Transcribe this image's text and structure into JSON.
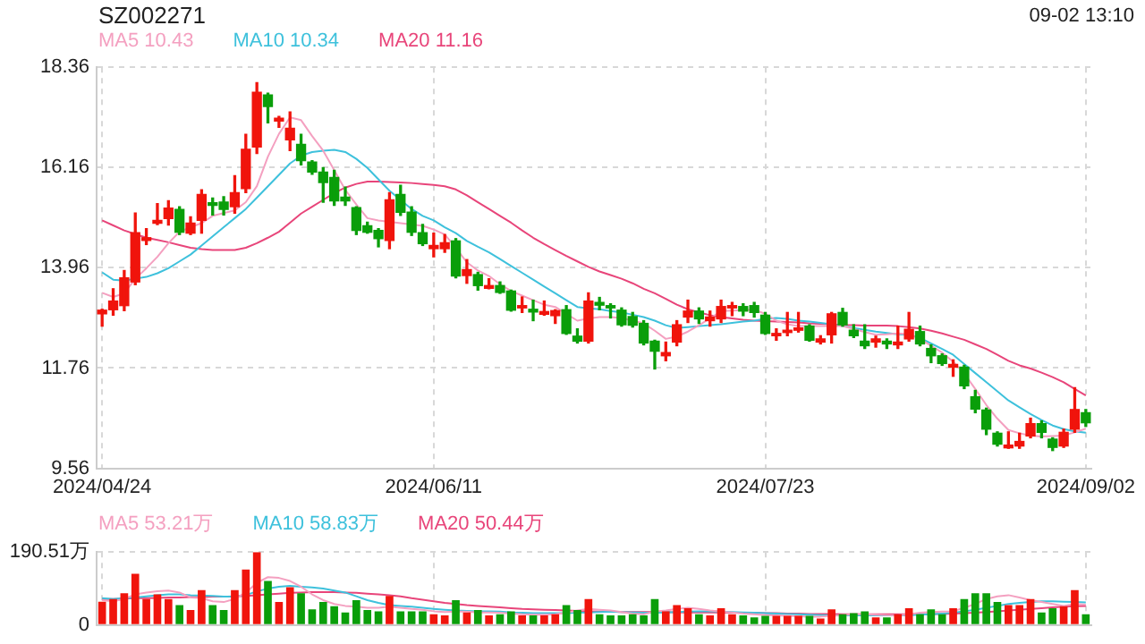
{
  "chart_data": [
    {
      "type": "candlestick",
      "title": "SZ002271",
      "annotations": [
        "09-02 13:10"
      ],
      "categories": [
        "2024/04/24",
        null,
        null,
        null,
        null,
        null,
        null,
        null,
        null,
        null,
        null,
        null,
        null,
        null,
        null,
        null,
        null,
        null,
        null,
        null,
        null,
        null,
        null,
        null,
        null,
        null,
        null,
        null,
        null,
        null,
        "2024/06/11",
        null,
        null,
        null,
        null,
        null,
        null,
        null,
        null,
        null,
        null,
        null,
        null,
        null,
        null,
        null,
        null,
        null,
        null,
        null,
        null,
        null,
        null,
        null,
        null,
        null,
        null,
        null,
        null,
        null,
        "2024/07/23",
        null,
        null,
        null,
        null,
        null,
        null,
        null,
        null,
        null,
        null,
        null,
        null,
        null,
        null,
        null,
        null,
        null,
        null,
        null,
        null,
        null,
        null,
        null,
        null,
        null,
        null,
        null,
        null,
        "2024/09/02"
      ],
      "ohlc": [
        [
          12.95,
          13.05,
          12.68,
          13.03
        ],
        [
          13.04,
          13.5,
          12.92,
          13.23
        ],
        [
          13.13,
          13.9,
          13.02,
          13.74
        ],
        [
          13.65,
          15.16,
          13.59,
          14.73
        ],
        [
          14.56,
          14.82,
          14.47,
          14.62
        ],
        [
          14.94,
          15.37,
          14.91,
          15.0
        ],
        [
          15.04,
          15.43,
          14.9,
          15.27
        ],
        [
          15.24,
          15.3,
          14.69,
          14.74
        ],
        [
          14.72,
          15.08,
          14.69,
          14.94
        ],
        [
          15.0,
          15.67,
          14.72,
          15.57
        ],
        [
          15.39,
          15.49,
          15.12,
          15.33
        ],
        [
          15.4,
          15.52,
          15.12,
          15.24
        ],
        [
          15.3,
          15.98,
          15.16,
          15.61
        ],
        [
          15.7,
          16.89,
          15.61,
          16.56
        ],
        [
          16.61,
          18.02,
          16.47,
          17.81
        ],
        [
          17.75,
          17.79,
          17.14,
          17.5
        ],
        [
          17.18,
          17.28,
          17.04,
          17.24
        ],
        [
          16.77,
          17.38,
          16.53,
          17.02
        ],
        [
          16.67,
          16.89,
          16.22,
          16.31
        ],
        [
          16.28,
          16.31,
          16.01,
          16.06
        ],
        [
          16.06,
          16.16,
          15.4,
          15.83
        ],
        [
          15.94,
          16.1,
          15.33,
          15.43
        ],
        [
          15.51,
          15.73,
          15.33,
          15.43
        ],
        [
          15.28,
          15.3,
          14.69,
          14.78
        ],
        [
          14.88,
          14.96,
          14.72,
          14.74
        ],
        [
          14.78,
          14.82,
          14.42,
          14.6
        ],
        [
          14.56,
          15.61,
          14.38,
          15.45
        ],
        [
          15.57,
          15.77,
          15.11,
          15.18
        ],
        [
          15.18,
          15.3,
          14.67,
          14.74
        ],
        [
          14.73,
          14.91,
          14.45,
          14.49
        ],
        [
          14.38,
          14.72,
          14.2,
          14.45
        ],
        [
          14.38,
          14.69,
          14.3,
          14.51
        ],
        [
          14.55,
          14.6,
          13.74,
          13.78
        ],
        [
          13.79,
          14.14,
          13.62,
          13.92
        ],
        [
          13.81,
          13.86,
          13.47,
          13.57
        ],
        [
          13.51,
          13.72,
          13.5,
          13.57
        ],
        [
          13.57,
          13.65,
          13.4,
          13.42
        ],
        [
          13.45,
          13.47,
          13.01,
          13.03
        ],
        [
          13.08,
          13.32,
          12.98,
          13.13
        ],
        [
          13.05,
          13.25,
          12.8,
          12.99
        ],
        [
          12.94,
          13.23,
          12.92,
          13.0
        ],
        [
          12.91,
          13.04,
          12.74,
          13.02
        ],
        [
          13.04,
          13.13,
          12.5,
          12.52
        ],
        [
          12.46,
          12.62,
          12.31,
          12.35
        ],
        [
          12.35,
          13.41,
          12.31,
          13.23
        ],
        [
          13.2,
          13.31,
          13.04,
          13.14
        ],
        [
          13.13,
          13.17,
          12.86,
          13.08
        ],
        [
          13.03,
          13.08,
          12.68,
          12.71
        ],
        [
          12.89,
          12.98,
          12.66,
          12.7
        ],
        [
          12.74,
          12.8,
          12.27,
          12.31
        ],
        [
          12.35,
          12.37,
          11.74,
          12.13
        ],
        [
          12.03,
          12.33,
          11.92,
          12.1
        ],
        [
          12.33,
          12.8,
          12.25,
          12.71
        ],
        [
          12.88,
          13.25,
          12.76,
          13.01
        ],
        [
          13.01,
          13.08,
          12.74,
          12.84
        ],
        [
          12.8,
          13.01,
          12.68,
          12.88
        ],
        [
          12.84,
          13.25,
          12.76,
          13.11
        ],
        [
          13.08,
          13.2,
          12.91,
          13.13
        ],
        [
          13.11,
          13.17,
          12.91,
          13.01
        ],
        [
          13.13,
          13.2,
          12.88,
          12.98
        ],
        [
          12.92,
          12.98,
          12.5,
          12.52
        ],
        [
          12.47,
          12.62,
          12.37,
          12.52
        ],
        [
          12.54,
          12.98,
          12.47,
          12.59
        ],
        [
          12.59,
          12.98,
          12.55,
          12.64
        ],
        [
          12.68,
          12.71,
          12.35,
          12.37
        ],
        [
          12.33,
          12.47,
          12.29,
          12.4
        ],
        [
          12.49,
          12.98,
          12.31,
          12.95
        ],
        [
          12.98,
          13.07,
          12.68,
          12.71
        ],
        [
          12.59,
          12.71,
          12.43,
          12.47
        ],
        [
          12.35,
          12.71,
          12.19,
          12.25
        ],
        [
          12.33,
          12.46,
          12.22,
          12.4
        ],
        [
          12.35,
          12.4,
          12.19,
          12.29
        ],
        [
          12.27,
          12.68,
          12.19,
          12.33
        ],
        [
          12.4,
          12.98,
          12.35,
          12.61
        ],
        [
          12.56,
          12.68,
          12.25,
          12.29
        ],
        [
          12.19,
          12.27,
          11.88,
          12.03
        ],
        [
          12.03,
          12.07,
          11.82,
          11.86
        ],
        [
          11.78,
          11.94,
          11.58,
          11.84
        ],
        [
          11.78,
          11.82,
          11.31,
          11.37
        ],
        [
          11.13,
          11.27,
          10.78,
          10.86
        ],
        [
          10.84,
          10.88,
          10.3,
          10.42
        ],
        [
          10.33,
          10.36,
          10.05,
          10.09
        ],
        [
          10.01,
          10.36,
          10.0,
          10.07
        ],
        [
          10.05,
          10.33,
          10.0,
          10.15
        ],
        [
          10.27,
          10.66,
          10.23,
          10.54
        ],
        [
          10.54,
          10.6,
          10.23,
          10.35
        ],
        [
          10.2,
          10.23,
          9.95,
          10.02
        ],
        [
          10.05,
          10.42,
          10.02,
          10.35
        ],
        [
          10.42,
          11.33,
          10.35,
          10.85
        ],
        [
          10.78,
          10.85,
          10.48,
          10.56
        ]
      ],
      "series": [
        {
          "type": "line",
          "name": "MA5 10.43",
          "color": "#f4a0c0",
          "values": [
            13.41,
            13.32,
            13.4,
            13.72,
            13.95,
            14.2,
            14.5,
            14.75,
            14.85,
            14.94,
            15.1,
            15.16,
            15.22,
            15.4,
            15.75,
            16.4,
            16.9,
            17.26,
            17.2,
            16.85,
            16.53,
            16.1,
            15.67,
            15.35,
            15.05,
            15.0,
            14.97,
            14.94,
            14.91,
            14.88,
            14.8,
            14.69,
            14.4,
            14.08,
            13.9,
            13.78,
            13.6,
            13.45,
            13.35,
            13.25,
            13.15,
            13.1,
            12.95,
            12.8,
            12.85,
            12.88,
            12.88,
            12.86,
            12.8,
            12.74,
            12.58,
            12.4,
            12.45,
            12.56,
            12.7,
            12.85,
            13.01,
            13.02,
            13.03,
            13.04,
            12.95,
            12.8,
            12.72,
            12.68,
            12.68,
            12.68,
            12.68,
            12.68,
            12.62,
            12.55,
            12.49,
            12.5,
            12.52,
            12.5,
            12.4,
            12.25,
            12.1,
            11.9,
            11.64,
            11.3,
            10.95,
            10.65,
            10.4,
            10.33,
            10.28,
            10.26,
            10.27,
            10.28,
            10.35,
            10.43
          ]
        },
        {
          "type": "line",
          "name": "MA10 10.34",
          "color": "#3ec1dc",
          "values": [
            13.86,
            13.7,
            13.68,
            13.72,
            13.76,
            13.84,
            13.95,
            14.1,
            14.25,
            14.45,
            14.65,
            14.85,
            15.05,
            15.25,
            15.5,
            15.75,
            16.0,
            16.25,
            16.42,
            16.5,
            16.53,
            16.55,
            16.5,
            16.35,
            16.15,
            15.9,
            15.65,
            15.45,
            15.25,
            15.1,
            15.0,
            14.85,
            14.72,
            14.55,
            14.42,
            14.3,
            14.15,
            14.0,
            13.85,
            13.7,
            13.55,
            13.4,
            13.25,
            13.1,
            13.07,
            13.05,
            13.01,
            12.98,
            12.93,
            12.88,
            12.8,
            12.7,
            12.64,
            12.66,
            12.68,
            12.7,
            12.72,
            12.75,
            12.78,
            12.8,
            12.84,
            12.86,
            12.84,
            12.8,
            12.78,
            12.75,
            12.72,
            12.68,
            12.64,
            12.6,
            12.56,
            12.53,
            12.5,
            12.49,
            12.42,
            12.3,
            12.18,
            12.05,
            11.85,
            11.65,
            11.45,
            11.25,
            11.05,
            10.9,
            10.75,
            10.62,
            10.5,
            10.42,
            10.37,
            10.34
          ]
        },
        {
          "type": "line",
          "name": "MA20 11.16",
          "color": "#e8457a",
          "values": [
            15.0,
            14.89,
            14.78,
            14.7,
            14.62,
            14.57,
            14.52,
            14.46,
            14.4,
            14.37,
            14.35,
            14.35,
            14.35,
            14.4,
            14.5,
            14.62,
            14.75,
            14.95,
            15.15,
            15.3,
            15.45,
            15.6,
            15.72,
            15.8,
            15.85,
            15.85,
            15.84,
            15.83,
            15.82,
            15.8,
            15.78,
            15.75,
            15.68,
            15.55,
            15.4,
            15.25,
            15.1,
            14.95,
            14.78,
            14.62,
            14.48,
            14.35,
            14.22,
            14.1,
            13.98,
            13.88,
            13.8,
            13.72,
            13.62,
            13.5,
            13.4,
            13.28,
            13.15,
            13.05,
            12.98,
            12.92,
            12.88,
            12.85,
            12.82,
            12.8,
            12.79,
            12.78,
            12.77,
            12.76,
            12.74,
            12.73,
            12.72,
            12.7,
            12.7,
            12.69,
            12.69,
            12.69,
            12.68,
            12.66,
            12.63,
            12.58,
            12.52,
            12.45,
            12.38,
            12.28,
            12.18,
            12.05,
            11.92,
            11.82,
            11.75,
            11.66,
            11.56,
            11.45,
            11.3,
            11.16
          ]
        }
      ],
      "ylim": [
        9.56,
        18.36
      ],
      "yticks": [
        9.56,
        11.76,
        13.96,
        16.16,
        18.36
      ],
      "grid": true,
      "legend": "top left"
    },
    {
      "type": "bar",
      "tick_labels": "y",
      "categories": [
        "2024/04/24",
        null,
        null,
        null,
        null,
        null,
        null,
        null,
        null,
        null,
        null,
        null,
        null,
        null,
        null,
        null,
        null,
        null,
        null,
        null,
        null,
        null,
        null,
        null,
        null,
        null,
        null,
        null,
        null,
        null,
        "2024/06/11",
        null,
        null,
        null,
        null,
        null,
        null,
        null,
        null,
        null,
        null,
        null,
        null,
        null,
        null,
        null,
        null,
        null,
        null,
        null,
        null,
        null,
        null,
        null,
        null,
        null,
        null,
        null,
        null,
        null,
        "2024/07/23",
        null,
        null,
        null,
        null,
        null,
        null,
        null,
        null,
        null,
        null,
        null,
        null,
        null,
        null,
        null,
        null,
        null,
        null,
        null,
        null,
        null,
        null,
        null,
        null,
        null,
        null,
        null,
        null,
        "2024/09/02"
      ],
      "series": [
        {
          "type": "bar",
          "values": [
            61,
            68,
            83,
            134,
            68,
            80,
            68,
            52,
            39,
            91,
            52,
            39,
            91,
            145,
            190.51,
            115,
            60,
            99,
            83,
            41,
            60,
            49,
            33,
            65,
            39,
            36,
            76,
            36,
            36,
            36,
            28,
            25,
            65,
            33,
            39,
            25,
            28,
            36,
            25,
            25,
            25,
            28,
            52,
            39,
            68,
            28,
            25,
            25,
            28,
            25,
            68,
            36,
            52,
            44,
            28,
            25,
            44,
            28,
            25,
            20,
            24,
            24,
            24,
            24,
            24,
            17,
            41,
            28,
            31,
            36,
            20,
            20,
            28,
            44,
            28,
            41,
            28,
            44,
            68,
            83,
            83,
            60,
            52,
            52,
            68,
            33,
            44,
            49,
            91,
            28
          ],
          "colors": [
            "#f0140c",
            "#f0140c",
            "#f0140c",
            "#f0140c",
            "#f0140c",
            "#f0140c",
            "#f0140c",
            "#0a9e0a",
            "#f0140c",
            "#f0140c",
            "#0a9e0a",
            "#0a9e0a",
            "#f0140c",
            "#f0140c",
            "#f0140c",
            "#0a9e0a",
            "#f0140c",
            "#f0140c",
            "#0a9e0a",
            "#0a9e0a",
            "#0a9e0a",
            "#0a9e0a",
            "#0a9e0a",
            "#0a9e0a",
            "#0a9e0a",
            "#0a9e0a",
            "#f0140c",
            "#0a9e0a",
            "#0a9e0a",
            "#0a9e0a",
            "#f0140c",
            "#f0140c",
            "#0a9e0a",
            "#f0140c",
            "#0a9e0a",
            "#f0140c",
            "#0a9e0a",
            "#0a9e0a",
            "#f0140c",
            "#0a9e0a",
            "#f0140c",
            "#f0140c",
            "#0a9e0a",
            "#0a9e0a",
            "#f0140c",
            "#0a9e0a",
            "#0a9e0a",
            "#0a9e0a",
            "#0a9e0a",
            "#0a9e0a",
            "#0a9e0a",
            "#f0140c",
            "#f0140c",
            "#f0140c",
            "#0a9e0a",
            "#f0140c",
            "#f0140c",
            "#f0140c",
            "#0a9e0a",
            "#0a9e0a",
            "#0a9e0a",
            "#f0140c",
            "#f0140c",
            "#f0140c",
            "#0a9e0a",
            "#f0140c",
            "#f0140c",
            "#0a9e0a",
            "#0a9e0a",
            "#0a9e0a",
            "#f0140c",
            "#0a9e0a",
            "#f0140c",
            "#f0140c",
            "#0a9e0a",
            "#0a9e0a",
            "#0a9e0a",
            "#f0140c",
            "#0a9e0a",
            "#0a9e0a",
            "#0a9e0a",
            "#0a9e0a",
            "#f0140c",
            "#f0140c",
            "#f0140c",
            "#0a9e0a",
            "#0a9e0a",
            "#f0140c",
            "#f0140c",
            "#0a9e0a"
          ]
        },
        {
          "type": "line",
          "name": "MA5 53.21万",
          "color": "#f4a0c0",
          "values": [
            65,
            62,
            68,
            80,
            85,
            88,
            90,
            85,
            72,
            70,
            62,
            60,
            68,
            85,
            110,
            125,
            123,
            115,
            100,
            80,
            65,
            55,
            50,
            48,
            45,
            45,
            48,
            45,
            42,
            40,
            36,
            34,
            35,
            35,
            33,
            33,
            32,
            30,
            28,
            27,
            27,
            28,
            32,
            38,
            42,
            40,
            38,
            34,
            30,
            28,
            35,
            38,
            42,
            45,
            42,
            38,
            35,
            33,
            30,
            28,
            26,
            25,
            24,
            23,
            22,
            22,
            24,
            26,
            28,
            28,
            27,
            26,
            25,
            28,
            32,
            34,
            35,
            36,
            45,
            55,
            68,
            75,
            78,
            72,
            65,
            60,
            55,
            50,
            55,
            53
          ]
        },
        {
          "type": "line",
          "name": "MA10 58.83万",
          "color": "#3ec1dc",
          "values": [
            70,
            68,
            70,
            72,
            75,
            78,
            80,
            80,
            78,
            77,
            76,
            74,
            75,
            78,
            88,
            95,
            100,
            102,
            100,
            98,
            95,
            90,
            85,
            75,
            65,
            58,
            52,
            50,
            48,
            45,
            42,
            40,
            38,
            37,
            36,
            36,
            35,
            33,
            32,
            31,
            31,
            31,
            31,
            32,
            33,
            34,
            35,
            34,
            33,
            32,
            32,
            33,
            34,
            35,
            36,
            36,
            35,
            34,
            33,
            32,
            31,
            30,
            29,
            28,
            27,
            26,
            25,
            25,
            25,
            25,
            25,
            25,
            25,
            26,
            27,
            28,
            30,
            32,
            36,
            40,
            45,
            50,
            55,
            58,
            60,
            62,
            62,
            61,
            60,
            59
          ]
        },
        {
          "type": "line",
          "name": "MA20 50.44万",
          "color": "#e8457a",
          "values": [
            68,
            68,
            69,
            70,
            70,
            71,
            72,
            72,
            73,
            73,
            74,
            74,
            75,
            76,
            78,
            80,
            82,
            84,
            85,
            86,
            86,
            86,
            85,
            84,
            82,
            80,
            78,
            75,
            70,
            66,
            62,
            58,
            55,
            52,
            50,
            48,
            46,
            44,
            42,
            41,
            40,
            39,
            38,
            37,
            36,
            35,
            35,
            34,
            34,
            34,
            34,
            34,
            33,
            33,
            33,
            33,
            33,
            32,
            32,
            32,
            31,
            31,
            30,
            30,
            29,
            29,
            29,
            28,
            28,
            28,
            28,
            28,
            28,
            28,
            28,
            29,
            29,
            30,
            31,
            32,
            34,
            36,
            38,
            40,
            42,
            44,
            46,
            48,
            49,
            50
          ]
        }
      ],
      "ylim": [
        0,
        190.51
      ],
      "yticks": [
        0,
        {
          "value": 190.51,
          "label": "190.51万"
        }
      ],
      "grid": true,
      "legend": "top left"
    }
  ]
}
